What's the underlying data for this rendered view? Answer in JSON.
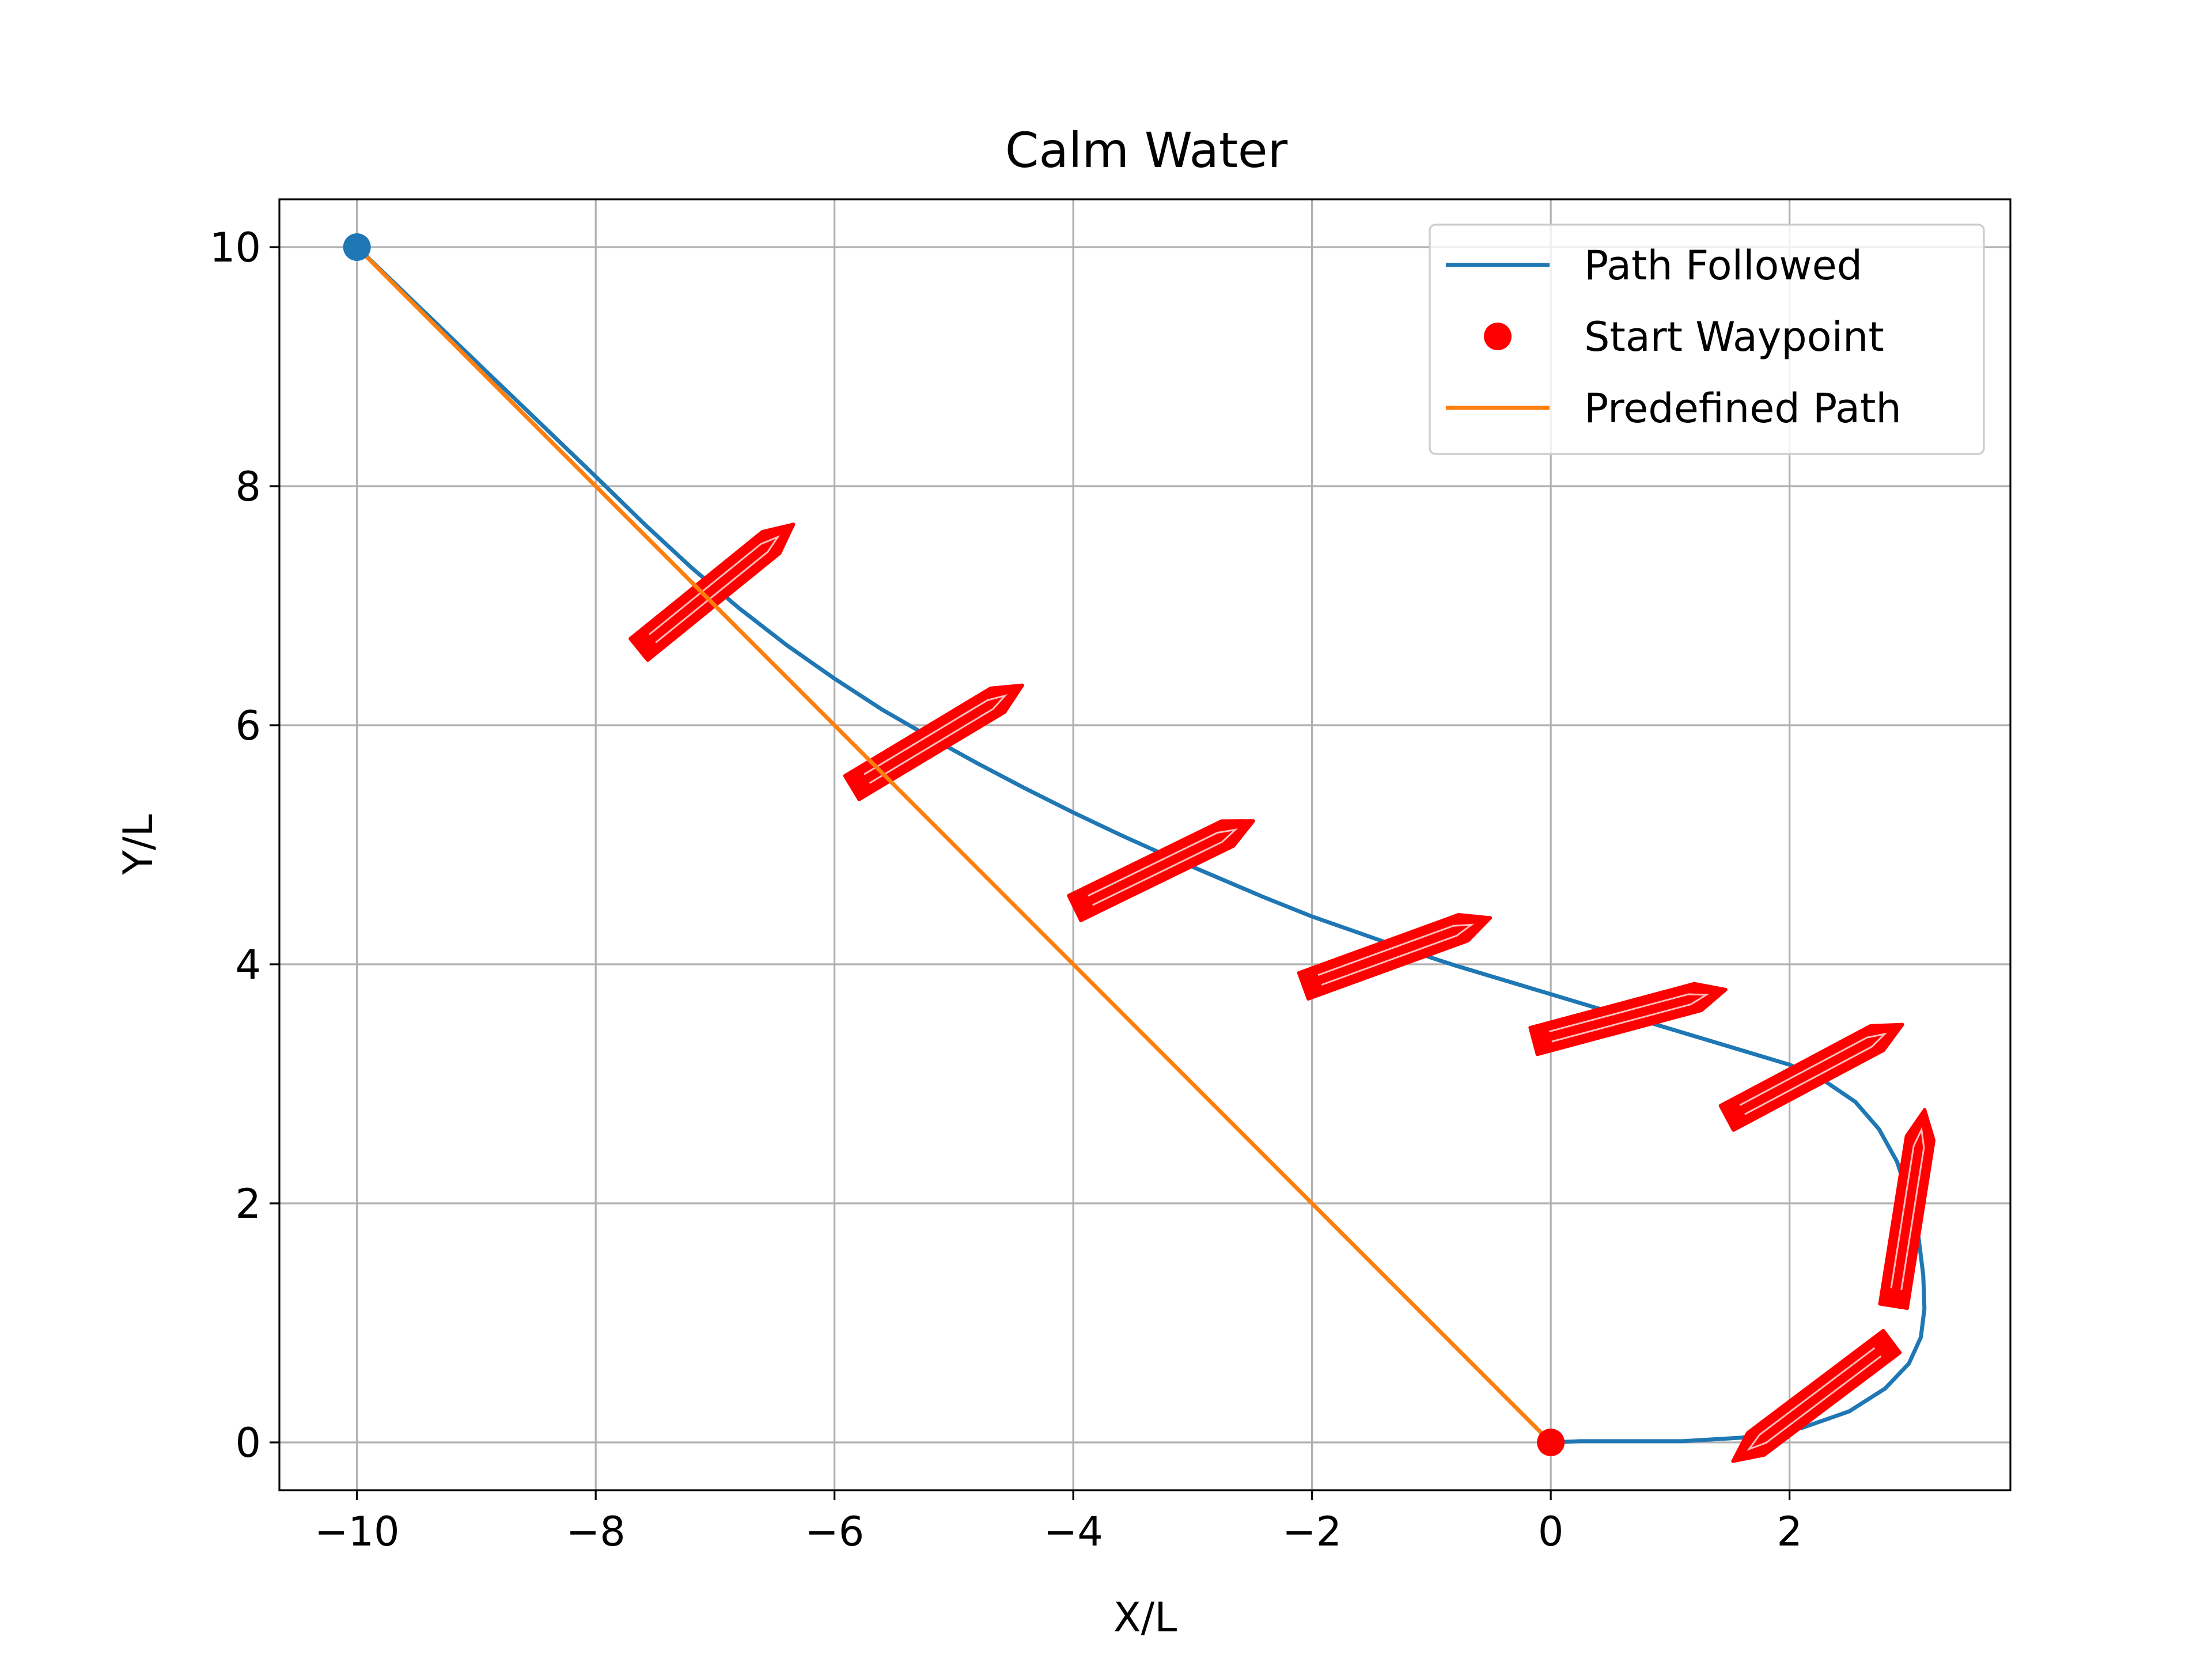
{
  "chart_data": {
    "type": "line",
    "title": "Calm Water",
    "xlabel": "X/L",
    "ylabel": "Y/L",
    "xlim": [
      -10.65,
      3.85
    ],
    "ylim": [
      10.4,
      -0.4
    ],
    "y_inverted": true,
    "grid": true,
    "x_ticks": [
      -10,
      -8,
      -6,
      -4,
      -2,
      0,
      2
    ],
    "x_tick_labels": [
      "−10",
      "−8",
      "−6",
      "−4",
      "−2",
      "0",
      "2"
    ],
    "y_ticks": [
      0,
      2,
      4,
      6,
      8,
      10
    ],
    "y_tick_labels": [
      "0",
      "2",
      "4",
      "6",
      "8",
      "10"
    ],
    "legend_placement": "upper-right",
    "series": [
      {
        "name": "Path Followed",
        "kind": "line",
        "color": "#1f77b4",
        "x": [
          -10,
          -9.5,
          -9,
          -8.5,
          -8,
          -7.6,
          -7.2,
          -6.8,
          -6.4,
          -6,
          -5.6,
          -5.2,
          -4.8,
          -4.4,
          -4,
          -3.6,
          -3.2,
          -2.8,
          -2.4,
          -2,
          -1.6,
          -1.2,
          -0.8,
          -0.4,
          0,
          0.4,
          0.8,
          1.2,
          1.6,
          2,
          2.3,
          2.55,
          2.75,
          2.9,
          3.0,
          3.08,
          3.12,
          3.13,
          3.1,
          3.0,
          2.8,
          2.5,
          2.1,
          1.6,
          1.1,
          0.6,
          0.25,
          0
        ],
        "y": [
          10,
          9.52,
          9.04,
          8.56,
          8.08,
          7.69,
          7.32,
          6.98,
          6.67,
          6.39,
          6.13,
          5.9,
          5.68,
          5.47,
          5.27,
          5.08,
          4.9,
          4.73,
          4.56,
          4.4,
          4.26,
          4.12,
          3.99,
          3.87,
          3.75,
          3.63,
          3.52,
          3.4,
          3.28,
          3.16,
          3.02,
          2.85,
          2.62,
          2.35,
          2.05,
          1.72,
          1.4,
          1.12,
          0.88,
          0.66,
          0.45,
          0.26,
          0.12,
          0.04,
          0.01,
          0.01,
          0.01,
          0
        ]
      },
      {
        "name": "Start Waypoint",
        "kind": "point",
        "color": "#ff0000",
        "x": [
          0
        ],
        "y": [
          0
        ]
      },
      {
        "name": "Predefined Path",
        "kind": "line",
        "color": "#ff7f0e",
        "x": [
          -10,
          0
        ],
        "y": [
          10,
          0
        ]
      },
      {
        "name": "",
        "kind": "end-point",
        "color": "#1f77b4",
        "x": [
          -10
        ],
        "y": [
          10
        ]
      }
    ],
    "vessel_markers": {
      "color": "#ff0000",
      "points": [
        {
          "x": -7.0,
          "y": 7.15,
          "heading": -39
        },
        {
          "x": -5.15,
          "y": 5.9,
          "heading": -31
        },
        {
          "x": -3.25,
          "y": 4.83,
          "heading": -26
        },
        {
          "x": -1.3,
          "y": 4.1,
          "heading": -20
        },
        {
          "x": 0.65,
          "y": 3.57,
          "heading": -15
        },
        {
          "x": 2.2,
          "y": 3.1,
          "heading": -28
        },
        {
          "x": 3.0,
          "y": 1.95,
          "heading": -81
        },
        {
          "x": 2.2,
          "y": 0.35,
          "heading": 143
        }
      ]
    }
  },
  "legend": {
    "items": [
      {
        "label": "Path Followed",
        "symbol": "line",
        "color": "#1f77b4"
      },
      {
        "label": "Start Waypoint",
        "symbol": "dot",
        "color": "#ff0000"
      },
      {
        "label": "Predefined Path",
        "symbol": "line",
        "color": "#ff7f0e"
      }
    ]
  }
}
